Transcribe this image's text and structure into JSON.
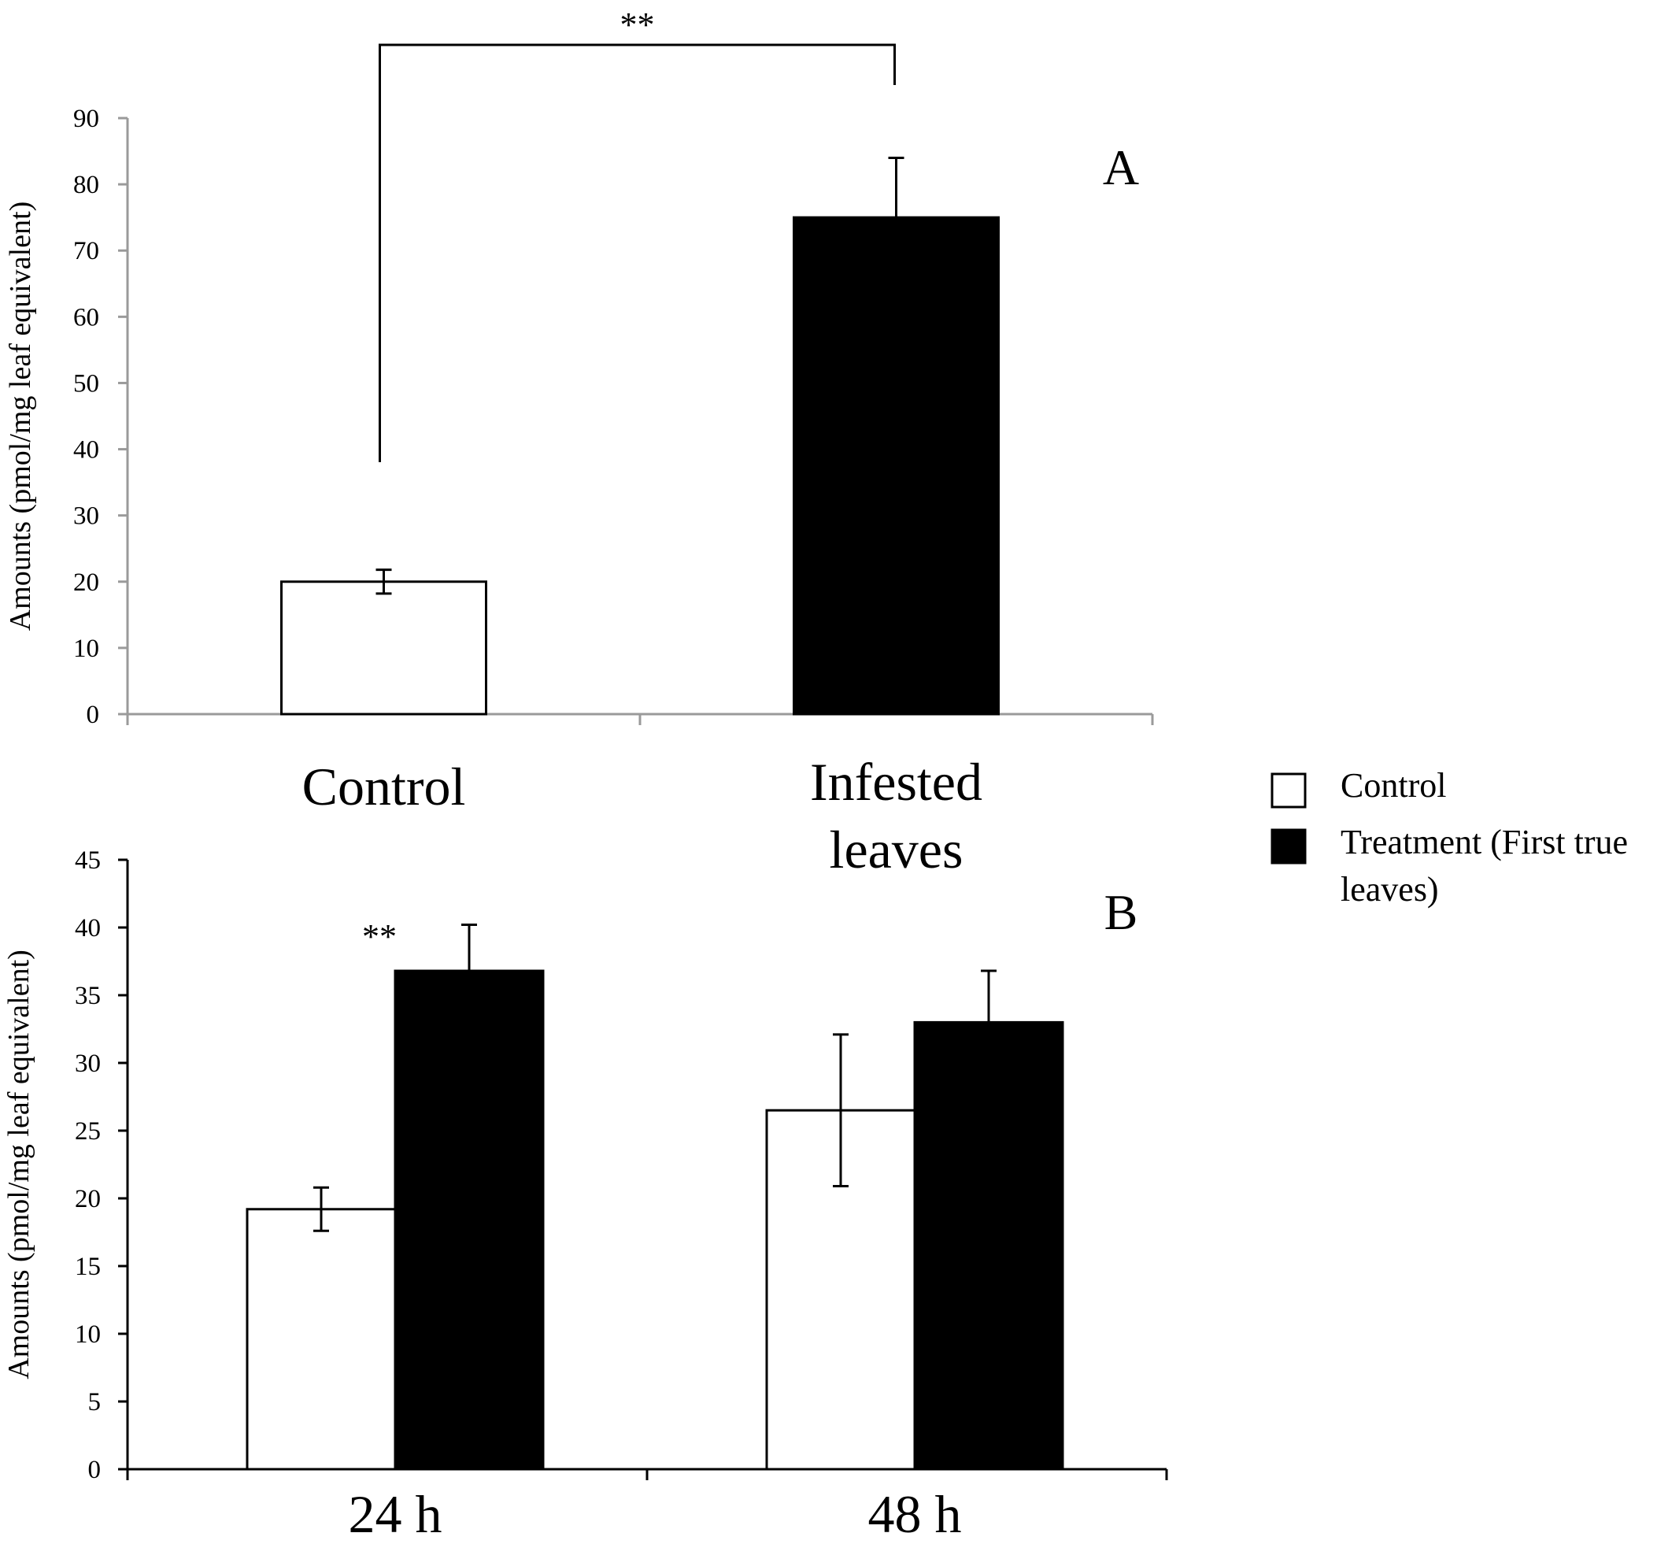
{
  "chart_data": [
    {
      "id": "A",
      "type": "bar",
      "panel_label": "A",
      "ylabel": "Amounts (pmol/mg leaf equivalent)",
      "ylim": [
        0,
        90
      ],
      "yticks": [
        "0",
        "10",
        "20",
        "30",
        "40",
        "50",
        "60",
        "70",
        "80",
        "90"
      ],
      "categories": [
        {
          "lines": [
            "Control"
          ]
        },
        {
          "lines": [
            "Infested",
            "leaves"
          ]
        }
      ],
      "values": [
        20,
        75
      ],
      "errors": [
        1.8,
        9
      ],
      "fills": [
        "#ffffff",
        "#000000"
      ],
      "significance": {
        "text": "**",
        "between": [
          0,
          1
        ]
      },
      "grid": false
    },
    {
      "id": "B",
      "type": "bar",
      "panel_label": "B",
      "ylabel": "Amounts (pmol/mg leaf equivalent)",
      "ylim": [
        0,
        45
      ],
      "yticks": [
        "0",
        "5",
        "10",
        "15",
        "20",
        "25",
        "30",
        "35",
        "40",
        "45"
      ],
      "categories": [
        "24 h",
        "48 h"
      ],
      "series": [
        {
          "name": "Control",
          "color": "#ffffff",
          "values": [
            19.2,
            26.5
          ],
          "errors": [
            1.6,
            5.6
          ]
        },
        {
          "name": "Treatment (First true leaves)",
          "color": "#000000",
          "values": [
            36.8,
            33
          ],
          "errors": [
            3.4,
            3.8
          ]
        }
      ],
      "annotations": [
        {
          "text": "**",
          "category": 0
        }
      ],
      "grid": false
    }
  ],
  "legend": {
    "items": [
      {
        "label_lines": [
          "Control"
        ],
        "color": "#ffffff"
      },
      {
        "label_lines": [
          "Treatment (First true",
          "leaves)"
        ],
        "color": "#000000"
      }
    ]
  }
}
